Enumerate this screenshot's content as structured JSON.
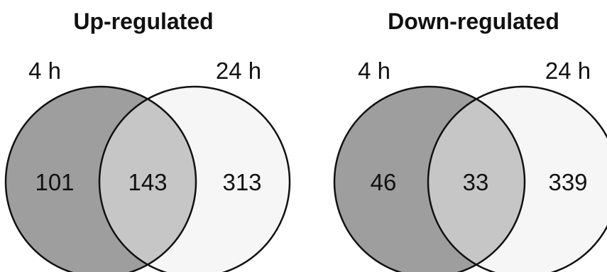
{
  "colors": {
    "set_a_fill": "#9e9e9e",
    "set_b_fill": "#f6f6f6",
    "overlap_fill": "#c6c6c6",
    "outline": "#111111"
  },
  "panels": [
    {
      "title": "Up-regulated",
      "set_a": {
        "label": "4 h",
        "count": "101"
      },
      "overlap": {
        "count": "143"
      },
      "set_b": {
        "label": "24 h",
        "count": "313"
      }
    },
    {
      "title": "Down-regulated",
      "set_a": {
        "label": "4 h",
        "count": "46"
      },
      "overlap": {
        "count": "33"
      },
      "set_b": {
        "label": "24 h",
        "count": "339"
      }
    }
  ]
}
